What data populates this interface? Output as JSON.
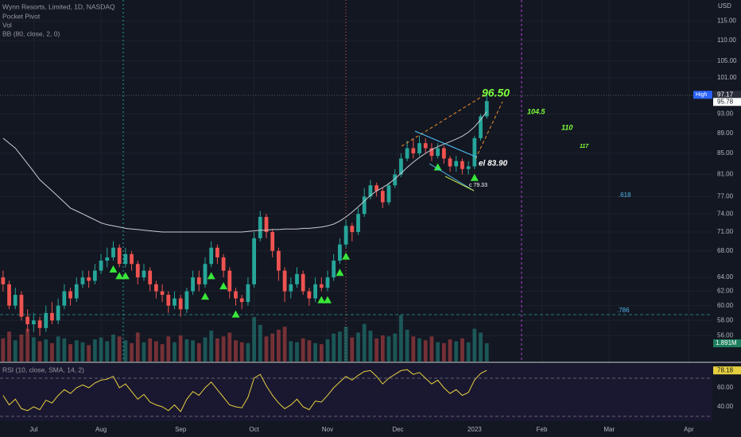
{
  "chart_data": {
    "type": "candlestick",
    "title": "Wynn Resorts, Limited, 1D, NASDAQ",
    "indicators": [
      "Pocket Pivot",
      "Vol",
      "BB (80, close, 2, 0)"
    ],
    "rsi_title": "RSI (10, close, SMA, 14, 2)",
    "currency": "USD",
    "high_label": "High",
    "volume_last_label": "1.891M",
    "log_scale": true,
    "grid": true,
    "up_color": "#26a69a",
    "down_color": "#ef5350",
    "bb_color": "#c9ccd4",
    "rsi_color": "#e6cf3f",
    "pivot_color": "#39e639",
    "xlim": [
      -0.5,
      120
    ],
    "xticks": [
      {
        "value": 5,
        "label": "Jul"
      },
      {
        "value": 16,
        "label": "Aug"
      },
      {
        "value": 29,
        "label": "Sep"
      },
      {
        "value": 41,
        "label": "Oct"
      },
      {
        "value": 53,
        "label": "Nov"
      },
      {
        "value": 64.5,
        "label": "Dec"
      },
      {
        "value": 77,
        "label": "2023"
      },
      {
        "value": 88,
        "label": "Feb"
      },
      {
        "value": 99,
        "label": "Mar"
      },
      {
        "value": 112,
        "label": "Apr"
      }
    ],
    "ylim": [
      52.8,
      120.7
    ],
    "yticks": [
      {
        "value": 56,
        "label": "56.00"
      },
      {
        "value": 58,
        "label": "58.00"
      },
      {
        "value": 60,
        "label": "60.00"
      },
      {
        "value": 62,
        "label": "62.00"
      },
      {
        "value": 64,
        "label": "64.00"
      },
      {
        "value": 68,
        "label": "68.00"
      },
      {
        "value": 71,
        "label": "71.00"
      },
      {
        "value": 74,
        "label": "74.00"
      },
      {
        "value": 77,
        "label": "77.00"
      },
      {
        "value": 81,
        "label": "81.00"
      },
      {
        "value": 85,
        "label": "85.00"
      },
      {
        "value": 89,
        "label": "89.00"
      },
      {
        "value": 93,
        "label": "93.00"
      },
      {
        "value": 101,
        "label": "101.00"
      },
      {
        "value": 105,
        "label": "105.00"
      },
      {
        "value": 110,
        "label": "110.00"
      },
      {
        "value": 115,
        "label": "115.00"
      }
    ],
    "open": [
      64,
      63,
      60,
      61.5,
      58.5,
      57.5,
      58,
      57,
      59,
      58,
      60,
      62,
      61,
      63,
      64,
      63.5,
      65,
      66.5,
      67,
      68.5,
      66,
      67.5,
      66,
      64,
      65,
      63,
      62,
      61.5,
      60,
      61,
      59.5,
      62,
      64,
      63,
      66,
      68.5,
      67,
      65,
      62,
      61,
      60.5,
      63,
      70,
      73.5,
      71,
      68,
      65,
      62,
      63,
      64.5,
      62,
      61,
      63,
      62.5,
      64,
      66.5,
      69,
      72,
      71,
      74,
      77,
      79,
      78,
      76,
      79,
      81,
      84,
      86,
      85,
      87,
      86,
      84.5,
      86,
      84,
      82.5,
      83.5,
      82,
      82.5,
      88,
      92.5
    ],
    "high": [
      65,
      63.5,
      62.5,
      62,
      59.5,
      59,
      58.5,
      60,
      60.5,
      61,
      63,
      62.5,
      64,
      65,
      65,
      66,
      67.5,
      68.5,
      69.5,
      69,
      68.5,
      68,
      66.5,
      66,
      65.5,
      63.5,
      63,
      62,
      62,
      61.5,
      62.5,
      65,
      65,
      67,
      69.5,
      69,
      67.5,
      65.5,
      62.5,
      61.5,
      64,
      71,
      74.5,
      74,
      71.5,
      68.5,
      65.5,
      64,
      65.5,
      65,
      62.5,
      64,
      64,
      65,
      67.5,
      70,
      73,
      72.5,
      75,
      78.5,
      80,
      79.5,
      78.5,
      79.5,
      82,
      85,
      87.5,
      88,
      88.5,
      88,
      87,
      87,
      86.5,
      84.5,
      84.5,
      84,
      83.5,
      88.5,
      93,
      97.17
    ],
    "low": [
      62,
      59.5,
      59.5,
      58,
      56.5,
      56.5,
      56,
      56.5,
      57.5,
      57.5,
      59.5,
      60,
      60.5,
      62.5,
      62.5,
      63,
      64.5,
      65.5,
      66.5,
      65.5,
      65.5,
      65,
      63,
      63.5,
      62,
      61,
      60.5,
      59,
      59.5,
      58.5,
      59,
      61.5,
      62,
      62.5,
      65.5,
      66,
      64,
      61,
      60,
      59.5,
      60,
      62.5,
      69.5,
      70,
      67,
      63.5,
      60.5,
      61,
      62.5,
      61.5,
      60,
      60.5,
      62,
      62,
      63.5,
      66,
      68.5,
      69.5,
      70.5,
      73.5,
      76.5,
      77,
      75,
      75.5,
      78.5,
      80.5,
      83.5,
      84,
      84.5,
      85,
      83.5,
      84,
      83,
      81.5,
      81.5,
      81,
      81,
      82,
      87.5,
      92
    ],
    "close": [
      63,
      60,
      61.5,
      58.5,
      57.5,
      58,
      57,
      59,
      58,
      60,
      62,
      61,
      63,
      64,
      63.5,
      65,
      66.5,
      67,
      68.5,
      66,
      67.5,
      66,
      64,
      65,
      63,
      62,
      61.5,
      60,
      61,
      59.5,
      62,
      64,
      63,
      66,
      68.5,
      67,
      65,
      62,
      61,
      60.5,
      63,
      70,
      73.5,
      71,
      68,
      65,
      62,
      63,
      64.5,
      62,
      61,
      63,
      62.5,
      64,
      66.5,
      69,
      72,
      71,
      74,
      77,
      79,
      78,
      76,
      79,
      81,
      84,
      86,
      85,
      87,
      86,
      84.5,
      86,
      84,
      82.5,
      83.5,
      82,
      82.5,
      88,
      92.5,
      95.78
    ],
    "volume": [
      2.4,
      3.1,
      2.2,
      2.8,
      3.4,
      2.5,
      2.1,
      2.3,
      1.9,
      2.6,
      2.4,
      1.8,
      2.2,
      2.0,
      1.7,
      2.3,
      2.5,
      2.1,
      2.8,
      2.6,
      2.2,
      1.9,
      3.0,
      2.0,
      2.4,
      2.1,
      1.8,
      2.6,
      2.0,
      2.7,
      2.3,
      2.2,
      1.9,
      2.5,
      3.2,
      2.4,
      2.6,
      3.0,
      2.2,
      2.0,
      1.9,
      4.6,
      3.8,
      2.6,
      2.9,
      3.3,
      3.6,
      2.1,
      2.0,
      2.4,
      2.2,
      1.9,
      1.8,
      2.3,
      2.9,
      3.1,
      3.6,
      2.5,
      3.0,
      3.9,
      3.2,
      2.4,
      2.7,
      2.6,
      2.9,
      4.8,
      3.3,
      2.6,
      2.4,
      2.2,
      2.6,
      2.0,
      1.9,
      2.3,
      2.1,
      2.4,
      2.0,
      3.4,
      3.0,
      1.891
    ],
    "volume_lim": [
      0,
      7
    ],
    "bb": [
      88,
      87,
      86,
      84.5,
      83,
      81.5,
      80,
      79,
      78,
      77,
      76,
      75,
      74.5,
      74,
      73.5,
      73,
      72.5,
      72.2,
      72,
      71.8,
      71.6,
      71.5,
      71.4,
      71.3,
      71.2,
      71.1,
      71,
      71,
      71,
      71,
      71,
      71,
      71,
      71,
      71,
      71,
      71,
      71,
      71,
      71,
      71.1,
      71.2,
      71.3,
      71.3,
      71.4,
      71.4,
      71.5,
      71.5,
      71.5,
      71.6,
      71.6,
      71.7,
      71.8,
      72,
      72.3,
      72.8,
      73.5,
      74.3,
      75.2,
      76.2,
      77.2,
      78,
      78.6,
      79.3,
      80.2,
      81.2,
      82.3,
      83.3,
      84.2,
      85,
      85.7,
      86.3,
      86.8,
      87.3,
      87.8,
      88.4,
      89.2,
      90.3,
      91.8,
      93.5
    ],
    "pivots": [
      18,
      19,
      20,
      33,
      34,
      36,
      38,
      52,
      53,
      55,
      56,
      71,
      77
    ],
    "rsi": [
      52,
      42,
      48,
      38,
      36,
      40,
      37,
      47,
      44,
      52,
      58,
      54,
      60,
      63,
      60,
      65,
      68,
      69,
      72,
      60,
      64,
      56,
      48,
      53,
      45,
      42,
      40,
      36,
      42,
      35,
      48,
      56,
      52,
      60,
      66,
      58,
      50,
      42,
      40,
      39,
      50,
      70,
      74,
      62,
      52,
      44,
      38,
      42,
      48,
      40,
      37,
      46,
      45,
      52,
      60,
      66,
      72,
      68,
      73,
      77,
      78,
      72,
      64,
      70,
      74,
      78,
      79,
      74,
      76,
      70,
      64,
      68,
      60,
      54,
      58,
      52,
      55,
      68,
      75,
      78.18
    ],
    "rsi_ylim": [
      25,
      85
    ],
    "rsi_yticks": [
      {
        "value": 40,
        "label": "40.00"
      },
      {
        "value": 60,
        "label": "60.00"
      }
    ],
    "rsi_bands": [
      30,
      70
    ],
    "annotations": [
      "96.50",
      "104.5",
      "110",
      "117",
      ".618",
      ".786",
      "el 83.90",
      "c 79.33"
    ]
  }
}
